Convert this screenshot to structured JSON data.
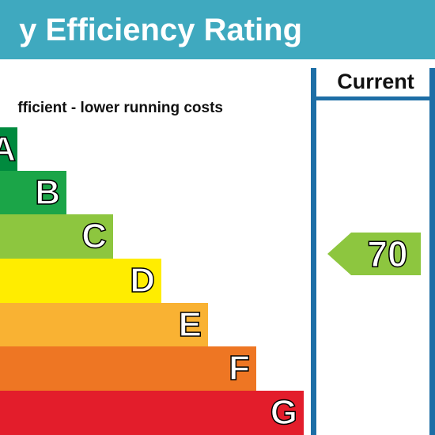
{
  "title": "y Efficiency Rating",
  "subtitle": "fficient - lower running costs",
  "current_label": "Current",
  "current_rating": {
    "value": "70",
    "color": "#8dc63f"
  },
  "bands": [
    {
      "letter": "A",
      "color": "#008a3e"
    },
    {
      "letter": "B",
      "color": "#1ba548"
    },
    {
      "letter": "C",
      "color": "#8dc63f"
    },
    {
      "letter": "D",
      "color": "#ffed00"
    },
    {
      "letter": "E",
      "color": "#f9b233"
    },
    {
      "letter": "F",
      "color": "#ee7623"
    },
    {
      "letter": "G",
      "color": "#e31d2b"
    }
  ],
  "panel_color": "#1d6ea6",
  "header_color": "#3fa9bf"
}
